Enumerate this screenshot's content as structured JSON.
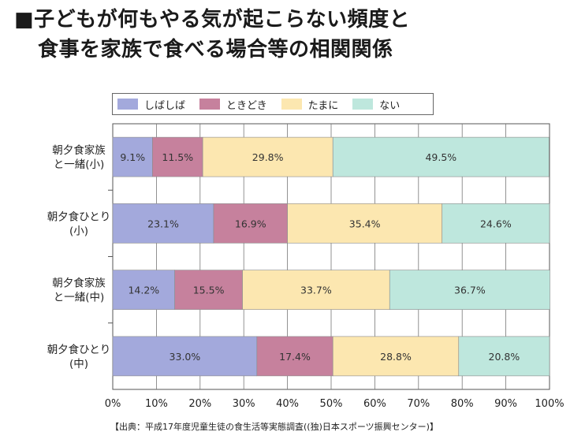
{
  "title": {
    "line1": "■子どもが何もやる気が起こらない頻度と",
    "line2": "食事を家族で食べる場合等の相関関係"
  },
  "footer": "【出典：平成17年度児童生徒の食生活等実態調査((独)日本スポーツ振興センター)】",
  "colors": {
    "しばしば": "#a3a9dc",
    "ときどき": "#c6819d",
    "たまに": "#fce7b0",
    "ない": "#bee7dd"
  },
  "chart_data": {
    "type": "bar",
    "orientation": "horizontal",
    "stacked": true,
    "categories": [
      "朝夕食家族\nと一緒(小)",
      "朝夕食ひとり\n(小)",
      "朝夕食家族\nと一緒(中)",
      "朝夕食ひとり\n(中)"
    ],
    "series": [
      {
        "name": "しばしば",
        "values": [
          9.1,
          23.1,
          14.2,
          33.0
        ]
      },
      {
        "name": "ときどき",
        "values": [
          11.5,
          16.9,
          15.5,
          17.4
        ]
      },
      {
        "name": "たまに",
        "values": [
          29.8,
          35.4,
          33.7,
          28.8
        ]
      },
      {
        "name": "ない",
        "values": [
          49.5,
          24.6,
          36.7,
          20.8
        ]
      }
    ],
    "data_labels": [
      [
        "9.1%",
        "11.5%",
        "29.8%",
        "49.5%"
      ],
      [
        "23.1%",
        "16.9%",
        "35.4%",
        "24.6%"
      ],
      [
        "14.2%",
        "15.5%",
        "33.7%",
        "36.7%"
      ],
      [
        "33.0%",
        "17.4%",
        "28.8%",
        "20.8%"
      ]
    ],
    "xlim": [
      0,
      100
    ],
    "xticks": [
      "0%",
      "10%",
      "20%",
      "30%",
      "40%",
      "50%",
      "60%",
      "70%",
      "80%",
      "90%",
      "100%"
    ],
    "grid": true,
    "legend_position": "top"
  }
}
